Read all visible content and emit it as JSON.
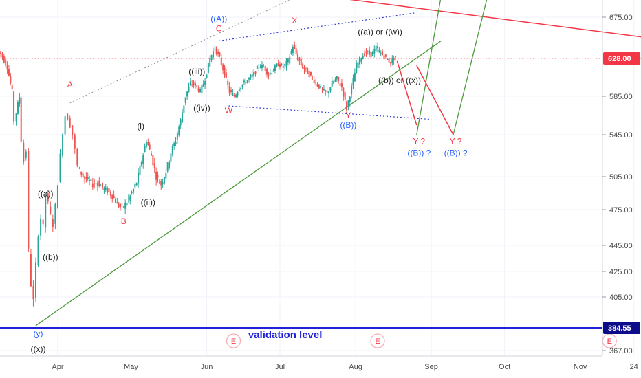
{
  "chart_data": {
    "type": "candlestick",
    "ylim": [
      367,
      700
    ],
    "price_ticks": [
      {
        "value": 675,
        "label": "675.00"
      },
      {
        "value": 585,
        "label": "585.00"
      },
      {
        "value": 545,
        "label": "545.00"
      },
      {
        "value": 505,
        "label": "505.00"
      },
      {
        "value": 475,
        "label": "475.00"
      },
      {
        "value": 445,
        "label": "445.00"
      },
      {
        "value": 425,
        "label": "425.00"
      },
      {
        "value": 405,
        "label": "405.00"
      },
      {
        "value": 367,
        "label": "367.00"
      }
    ],
    "date_ticks": [
      {
        "label": "Apr",
        "day": 9
      },
      {
        "label": "May",
        "day": 39
      },
      {
        "label": "Jun",
        "day": 70
      },
      {
        "label": "Jul",
        "day": 100
      },
      {
        "label": "Aug",
        "day": 131
      },
      {
        "label": "Sep",
        "day": 162
      },
      {
        "label": "Oct",
        "day": 192
      },
      {
        "label": "Nov",
        "day": 223
      },
      {
        "label": "24",
        "day": 245
      }
    ],
    "current_price": {
      "value": 628.0,
      "label": "628.00",
      "color": "#f23645"
    },
    "invalidation_level": {
      "value": 384.55,
      "label": "384.55",
      "text": "validation level",
      "color": "#1f22d6"
    },
    "price_path": [
      {
        "day": -15,
        "price": 640
      },
      {
        "day": -13,
        "price": 630
      },
      {
        "day": -11,
        "price": 618
      },
      {
        "day": -9,
        "price": 590
      },
      {
        "day": -8,
        "price": 560
      },
      {
        "day": -6,
        "price": 585
      },
      {
        "day": -5,
        "price": 540
      },
      {
        "day": -4,
        "price": 520
      },
      {
        "day": -3,
        "price": 530
      },
      {
        "day": -2,
        "price": 440
      },
      {
        "day": -1,
        "price": 415
      },
      {
        "day": 0,
        "price": 402
      },
      {
        "day": 1,
        "price": 430
      },
      {
        "day": 2,
        "price": 455
      },
      {
        "day": 3,
        "price": 468
      },
      {
        "day": 4,
        "price": 460
      },
      {
        "day": 5,
        "price": 490
      },
      {
        "day": 6,
        "price": 480
      },
      {
        "day": 7,
        "price": 470
      },
      {
        "day": 8,
        "price": 462
      },
      {
        "day": 9,
        "price": 478
      },
      {
        "day": 10,
        "price": 500
      },
      {
        "day": 11,
        "price": 525
      },
      {
        "day": 12,
        "price": 548
      },
      {
        "day": 13,
        "price": 565
      },
      {
        "day": 14,
        "price": 562
      },
      {
        "day": 15,
        "price": 555
      },
      {
        "day": 16,
        "price": 545
      },
      {
        "day": 17,
        "price": 530
      },
      {
        "day": 18,
        "price": 515
      },
      {
        "day": 20,
        "price": 505
      },
      {
        "day": 22,
        "price": 502
      },
      {
        "day": 24,
        "price": 498
      },
      {
        "day": 26,
        "price": 500
      },
      {
        "day": 28,
        "price": 495
      },
      {
        "day": 30,
        "price": 492
      },
      {
        "day": 32,
        "price": 488
      },
      {
        "day": 34,
        "price": 480
      },
      {
        "day": 36,
        "price": 476
      },
      {
        "day": 38,
        "price": 482
      },
      {
        "day": 40,
        "price": 490
      },
      {
        "day": 42,
        "price": 500
      },
      {
        "day": 44,
        "price": 520
      },
      {
        "day": 46,
        "price": 540
      },
      {
        "day": 48,
        "price": 525
      },
      {
        "day": 50,
        "price": 505
      },
      {
        "day": 52,
        "price": 498
      },
      {
        "day": 54,
        "price": 510
      },
      {
        "day": 56,
        "price": 528
      },
      {
        "day": 58,
        "price": 540
      },
      {
        "day": 60,
        "price": 560
      },
      {
        "day": 62,
        "price": 585
      },
      {
        "day": 64,
        "price": 600
      },
      {
        "day": 66,
        "price": 598
      },
      {
        "day": 68,
        "price": 590
      },
      {
        "day": 70,
        "price": 605
      },
      {
        "day": 72,
        "price": 628
      },
      {
        "day": 74,
        "price": 640
      },
      {
        "day": 76,
        "price": 628
      },
      {
        "day": 78,
        "price": 610
      },
      {
        "day": 80,
        "price": 590
      },
      {
        "day": 82,
        "price": 585
      },
      {
        "day": 84,
        "price": 595
      },
      {
        "day": 86,
        "price": 600
      },
      {
        "day": 88,
        "price": 605
      },
      {
        "day": 90,
        "price": 610
      },
      {
        "day": 92,
        "price": 620
      },
      {
        "day": 94,
        "price": 618
      },
      {
        "day": 96,
        "price": 610
      },
      {
        "day": 98,
        "price": 615
      },
      {
        "day": 100,
        "price": 622
      },
      {
        "day": 102,
        "price": 618
      },
      {
        "day": 104,
        "price": 625
      },
      {
        "day": 106,
        "price": 642
      },
      {
        "day": 108,
        "price": 628
      },
      {
        "day": 110,
        "price": 618
      },
      {
        "day": 112,
        "price": 612
      },
      {
        "day": 114,
        "price": 605
      },
      {
        "day": 116,
        "price": 598
      },
      {
        "day": 118,
        "price": 592
      },
      {
        "day": 120,
        "price": 588
      },
      {
        "day": 122,
        "price": 600
      },
      {
        "day": 124,
        "price": 605
      },
      {
        "day": 126,
        "price": 595
      },
      {
        "day": 128,
        "price": 572
      },
      {
        "day": 130,
        "price": 595
      },
      {
        "day": 132,
        "price": 620
      },
      {
        "day": 134,
        "price": 630
      },
      {
        "day": 136,
        "price": 635
      },
      {
        "day": 138,
        "price": 632
      },
      {
        "day": 140,
        "price": 640
      },
      {
        "day": 142,
        "price": 634
      },
      {
        "day": 144,
        "price": 628
      },
      {
        "day": 146,
        "price": 624
      },
      {
        "day": 148,
        "price": 630
      }
    ],
    "trendlines": [
      {
        "style": "green",
        "points": [
          [
            0,
            386
          ],
          [
            166,
            648
          ]
        ]
      },
      {
        "style": "red",
        "points": [
          [
            106,
            705
          ],
          [
            255,
            650
          ]
        ]
      },
      {
        "style": "blue-dot",
        "points": [
          [
            75,
            648
          ],
          [
            155,
            680
          ]
        ]
      },
      {
        "style": "blue-dot",
        "points": [
          [
            79,
            575
          ],
          [
            162,
            561
          ]
        ]
      },
      {
        "style": "gray-dot",
        "points": [
          [
            14,
            578
          ],
          [
            107,
            700
          ]
        ]
      },
      {
        "style": "red-dot",
        "points": [
          [
            -15,
            628
          ],
          [
            250,
            628
          ]
        ]
      },
      {
        "style": "red",
        "points": [
          [
            148,
            625
          ],
          [
            156,
            555
          ]
        ]
      },
      {
        "style": "red",
        "points": [
          [
            156,
            620
          ],
          [
            171,
            545
          ]
        ]
      },
      {
        "style": "green",
        "points": [
          [
            156,
            545
          ],
          [
            166,
            700
          ]
        ]
      },
      {
        "style": "green",
        "points": [
          [
            171,
            545
          ],
          [
            185,
            700
          ]
        ]
      }
    ],
    "wave_labels": [
      {
        "text": "A",
        "day": 14,
        "price": 595,
        "color": "#f23645"
      },
      {
        "text": "B",
        "day": 36,
        "price": 463,
        "color": "#f23645"
      },
      {
        "text": "C",
        "day": 75,
        "price": 659,
        "color": "#f23645"
      },
      {
        "text": "((A))",
        "day": 75,
        "price": 670,
        "color": "#2962ff"
      },
      {
        "text": "W",
        "day": 79,
        "price": 567,
        "color": "#f23645"
      },
      {
        "text": "X",
        "day": 106,
        "price": 668,
        "color": "#f23645"
      },
      {
        "text": "Y",
        "day": 128,
        "price": 562,
        "color": "#f23645"
      },
      {
        "text": "((B))",
        "day": 128,
        "price": 552,
        "color": "#2962ff"
      },
      {
        "text": "((a)) or ((w))",
        "day": 141,
        "price": 655,
        "color": "#222222"
      },
      {
        "text": "((b)) or ((x))",
        "day": 149,
        "price": 600,
        "color": "#222222"
      },
      {
        "text": "Y ?",
        "day": 157,
        "price": 536,
        "color": "#f23645"
      },
      {
        "text": "((B)) ?",
        "day": 157,
        "price": 525,
        "color": "#2962ff"
      },
      {
        "text": "Y ?",
        "day": 172,
        "price": 536,
        "color": "#f23645"
      },
      {
        "text": "((B)) ?",
        "day": 172,
        "price": 525,
        "color": "#2962ff"
      },
      {
        "text": "((a))",
        "day": 4,
        "price": 487,
        "color": "#222222"
      },
      {
        "text": "((b))",
        "day": 6,
        "price": 434,
        "color": "#222222"
      },
      {
        "text": "(i)",
        "day": 43,
        "price": 551,
        "color": "#222222"
      },
      {
        "text": "((ii))",
        "day": 46,
        "price": 479,
        "color": "#222222"
      },
      {
        "text": "((iii))",
        "day": 66,
        "price": 610,
        "color": "#222222"
      },
      {
        "text": "((iv))",
        "day": 68,
        "price": 570,
        "color": "#222222"
      },
      {
        "text": "(y)",
        "day": 1,
        "price": 378,
        "color": "#2962ff"
      },
      {
        "text": "((x))",
        "day": 1,
        "price": 366,
        "color": "#222222"
      }
    ],
    "event_markers": [
      {
        "text": "E",
        "day": 81
      },
      {
        "text": "E",
        "day": 140
      },
      {
        "text": "E",
        "day": 235
      }
    ]
  }
}
